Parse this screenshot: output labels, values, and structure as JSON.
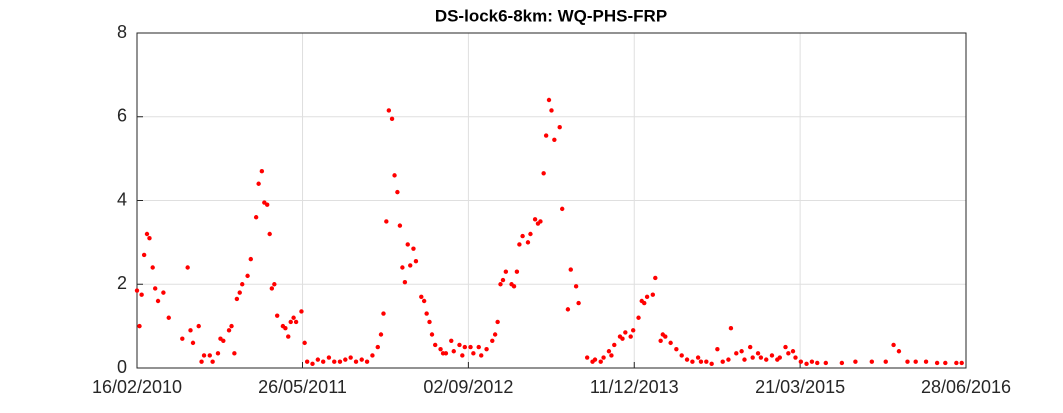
{
  "chart_data": {
    "type": "scatter",
    "title": "DS-lock6-8km: WQ-PHS-FRP",
    "color": "#ff0000",
    "grid": true,
    "xlim": [
      "16/02/2010",
      "28/06/2016"
    ],
    "xticks": [
      "16/02/2010",
      "26/05/2011",
      "02/09/2012",
      "11/12/2013",
      "21/03/2015",
      "28/06/2016"
    ],
    "ylim": [
      0,
      8
    ],
    "yticks": [
      0,
      2,
      4,
      6,
      8
    ],
    "x": [
      "16/02/2010",
      "23/02/2010",
      "01/03/2010",
      "08/03/2010",
      "16/03/2010",
      "23/03/2010",
      "01/04/2010",
      "08/04/2010",
      "16/04/2010",
      "01/05/2010",
      "16/05/2010",
      "23/06/2010",
      "08/07/2010",
      "16/07/2010",
      "23/07/2010",
      "08/08/2010",
      "16/08/2010",
      "23/08/2010",
      "08/09/2010",
      "16/09/2010",
      "01/10/2010",
      "08/10/2010",
      "16/10/2010",
      "01/11/2010",
      "08/11/2010",
      "16/11/2010",
      "23/11/2010",
      "01/12/2010",
      "08/12/2010",
      "23/12/2010",
      "01/01/2011",
      "16/01/2011",
      "23/01/2011",
      "01/02/2011",
      "08/02/2011",
      "16/02/2011",
      "23/02/2011",
      "01/03/2011",
      "08/03/2011",
      "16/03/2011",
      "01/04/2011",
      "08/04/2011",
      "16/04/2011",
      "23/04/2011",
      "01/05/2011",
      "08/05/2011",
      "23/05/2011",
      "01/06/2011",
      "08/06/2011",
      "23/06/2011",
      "08/07/2011",
      "23/07/2011",
      "08/08/2011",
      "23/08/2011",
      "08/09/2011",
      "23/09/2011",
      "08/10/2011",
      "23/10/2011",
      "08/11/2011",
      "23/11/2011",
      "08/12/2011",
      "23/12/2011",
      "01/01/2012",
      "08/01/2012",
      "16/01/2012",
      "23/01/2012",
      "01/02/2012",
      "08/02/2012",
      "16/02/2012",
      "23/02/2012",
      "01/03/2012",
      "08/03/2012",
      "16/03/2012",
      "23/03/2012",
      "01/04/2012",
      "08/04/2012",
      "23/04/2012",
      "01/05/2012",
      "08/05/2012",
      "16/05/2012",
      "23/05/2012",
      "01/06/2012",
      "16/06/2012",
      "23/06/2012",
      "01/07/2012",
      "16/07/2012",
      "23/07/2012",
      "08/08/2012",
      "16/08/2012",
      "23/08/2012",
      "08/09/2012",
      "16/09/2012",
      "01/10/2012",
      "08/10/2012",
      "23/10/2012",
      "08/11/2012",
      "16/11/2012",
      "23/11/2012",
      "01/12/2012",
      "08/12/2012",
      "16/12/2012",
      "01/01/2013",
      "08/01/2013",
      "16/01/2013",
      "23/01/2013",
      "01/02/2013",
      "16/02/2013",
      "23/02/2013",
      "08/03/2013",
      "16/03/2013",
      "23/03/2013",
      "01/04/2013",
      "08/04/2013",
      "16/04/2013",
      "23/04/2013",
      "01/05/2013",
      "16/05/2013",
      "23/05/2013",
      "08/06/2013",
      "16/06/2013",
      "01/07/2013",
      "08/07/2013",
      "01/08/2013",
      "16/08/2013",
      "23/08/2013",
      "08/09/2013",
      "16/09/2013",
      "01/10/2013",
      "08/10/2013",
      "16/10/2013",
      "01/11/2013",
      "08/11/2013",
      "16/11/2013",
      "01/12/2013",
      "08/12/2013",
      "23/12/2013",
      "01/01/2014",
      "08/01/2014",
      "16/01/2014",
      "01/02/2014",
      "08/02/2014",
      "23/02/2014",
      "01/03/2014",
      "08/03/2014",
      "23/03/2014",
      "08/04/2014",
      "23/04/2014",
      "08/05/2014",
      "23/05/2014",
      "08/06/2014",
      "16/06/2014",
      "01/07/2014",
      "16/07/2014",
      "01/08/2014",
      "16/08/2014",
      "01/09/2014",
      "08/09/2014",
      "23/09/2014",
      "08/10/2014",
      "16/10/2014",
      "01/11/2014",
      "08/11/2014",
      "23/11/2014",
      "01/12/2014",
      "16/12/2014",
      "01/01/2015",
      "16/01/2015",
      "23/01/2015",
      "08/02/2015",
      "16/02/2015",
      "01/03/2015",
      "08/03/2015",
      "23/03/2015",
      "08/04/2015",
      "23/04/2015",
      "08/05/2015",
      "01/06/2015",
      "16/07/2015",
      "23/08/2015",
      "08/10/2015",
      "16/11/2015",
      "08/12/2015",
      "23/12/2015",
      "16/01/2016",
      "08/02/2016",
      "08/03/2016",
      "08/04/2016",
      "01/05/2016",
      "01/06/2016",
      "16/06/2016"
    ],
    "values": [
      1.85,
      1.0,
      1.75,
      2.7,
      3.2,
      3.1,
      2.4,
      1.9,
      1.6,
      1.8,
      1.2,
      0.7,
      2.4,
      0.9,
      0.6,
      1.0,
      0.15,
      0.3,
      0.3,
      0.15,
      0.35,
      0.7,
      0.65,
      0.9,
      1.0,
      0.35,
      1.65,
      1.8,
      2.0,
      2.2,
      2.6,
      3.6,
      4.4,
      4.7,
      3.95,
      3.9,
      3.2,
      1.9,
      2.0,
      1.25,
      1.0,
      0.95,
      0.75,
      1.1,
      1.2,
      1.1,
      1.35,
      0.6,
      0.15,
      0.1,
      0.2,
      0.15,
      0.25,
      0.15,
      0.15,
      0.2,
      0.25,
      0.15,
      0.2,
      0.15,
      0.3,
      0.5,
      0.8,
      1.3,
      3.5,
      6.15,
      5.95,
      4.6,
      4.2,
      3.4,
      2.4,
      2.05,
      2.95,
      2.45,
      2.85,
      2.55,
      1.7,
      1.6,
      1.3,
      1.1,
      0.8,
      0.55,
      0.45,
      0.35,
      0.35,
      0.65,
      0.4,
      0.55,
      0.3,
      0.5,
      0.5,
      0.35,
      0.5,
      0.3,
      0.45,
      0.65,
      0.8,
      1.1,
      2.0,
      2.1,
      2.3,
      2.0,
      1.95,
      2.3,
      2.95,
      3.15,
      3.0,
      3.2,
      3.55,
      3.45,
      3.5,
      4.65,
      5.55,
      6.4,
      6.15,
      5.45,
      5.75,
      3.8,
      1.4,
      2.35,
      1.95,
      1.55,
      0.25,
      0.15,
      0.2,
      0.15,
      0.25,
      0.4,
      0.3,
      0.55,
      0.75,
      0.7,
      0.85,
      0.75,
      0.9,
      1.2,
      1.6,
      1.55,
      1.7,
      1.75,
      2.15,
      0.65,
      0.8,
      0.75,
      0.6,
      0.45,
      0.3,
      0.2,
      0.15,
      0.25,
      0.15,
      0.15,
      0.1,
      0.45,
      0.15,
      0.2,
      0.95,
      0.35,
      0.4,
      0.2,
      0.5,
      0.25,
      0.35,
      0.25,
      0.2,
      0.3,
      0.2,
      0.25,
      0.5,
      0.35,
      0.4,
      0.25,
      0.15,
      0.1,
      0.15,
      0.12,
      0.12,
      0.12,
      0.15,
      0.15,
      0.15,
      0.55,
      0.4,
      0.15,
      0.15,
      0.15,
      0.12,
      0.12,
      0.12,
      0.12
    ]
  }
}
